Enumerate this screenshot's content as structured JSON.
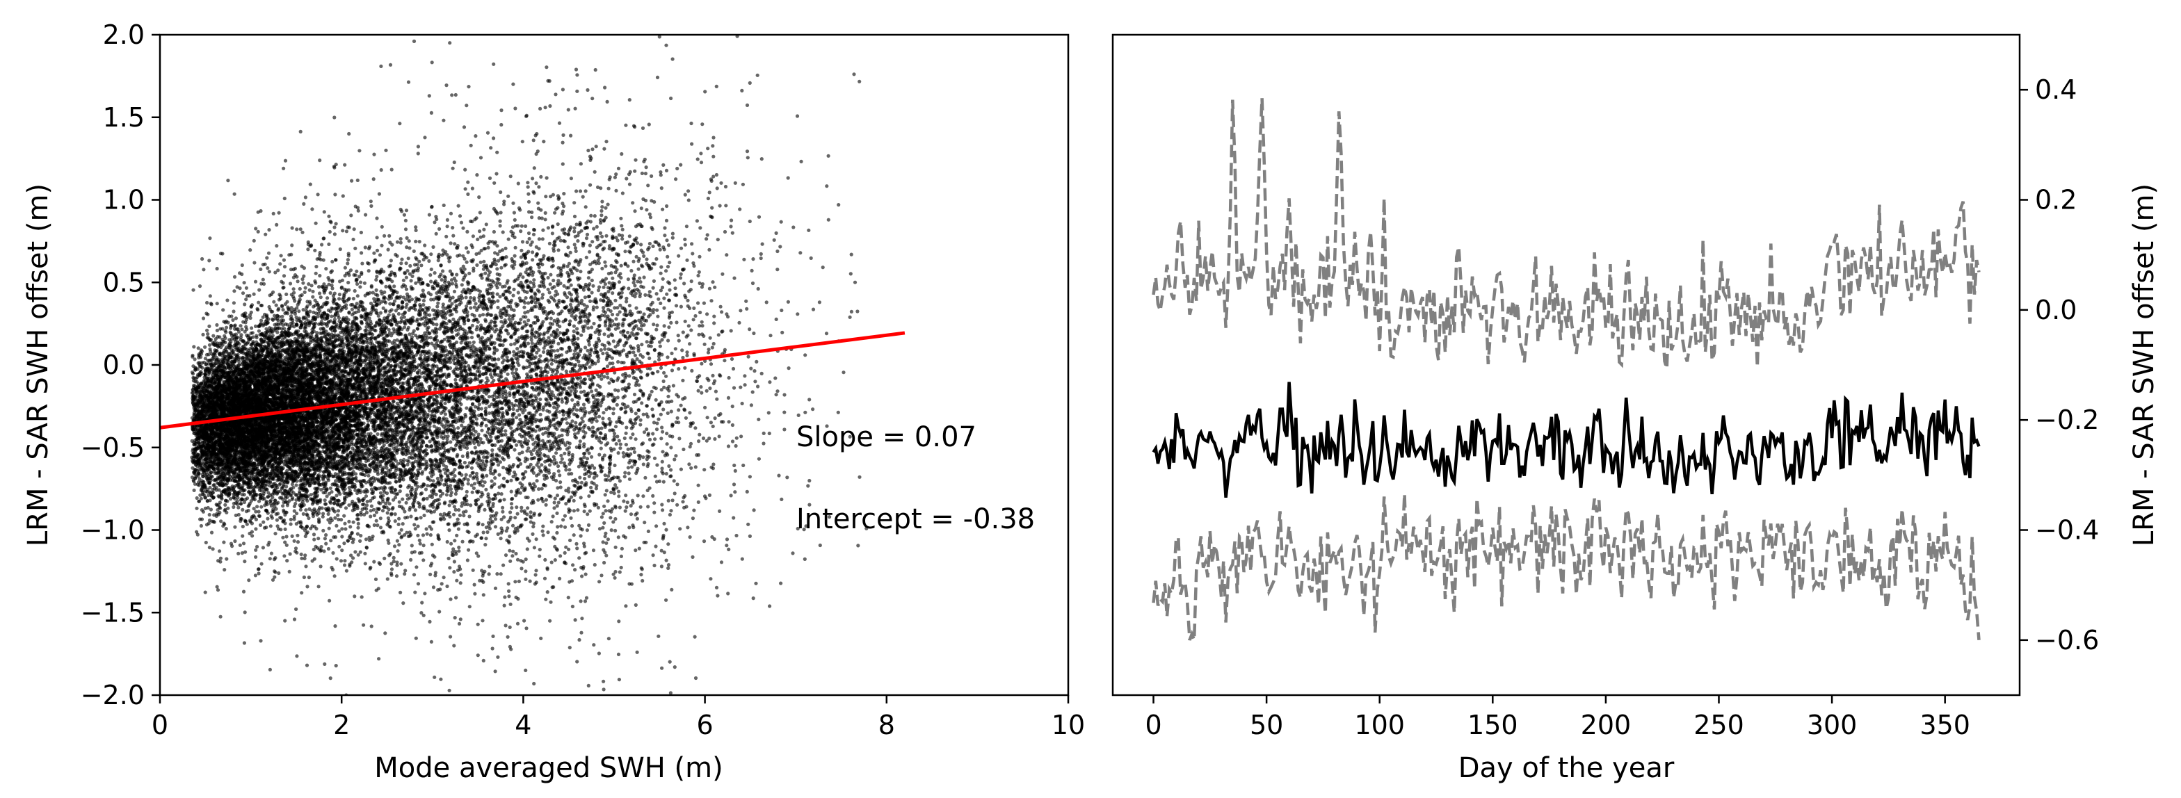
{
  "chart_data": [
    {
      "type": "scatter",
      "title": "",
      "xlabel": "Mode averaged SWH (m)",
      "ylabel": "LRM - SAR SWH offset (m)",
      "xlim": [
        0,
        10
      ],
      "ylim": [
        -2.0,
        2.0
      ],
      "xticks": [
        "0",
        "2",
        "4",
        "6",
        "8",
        "10"
      ],
      "yticks": [
        "2.0",
        "1.5",
        "1.0",
        "0.5",
        "0.0",
        "−0.5",
        "−1.0",
        "−1.5",
        "−2.0"
      ],
      "grid": false,
      "point_color": "#000000",
      "point_count_approx": 20000,
      "cloud_description": {
        "x_range": [
          0.3,
          8
        ],
        "dense_core_x": [
          0.5,
          3
        ],
        "dense_core_y": [
          -0.6,
          0.2
        ]
      },
      "fit_line": {
        "color": "#ff0000",
        "slope": 0.07,
        "intercept": -0.38,
        "x_range": [
          0,
          8.2
        ]
      },
      "annotations": [
        {
          "text": "Slope = 0.07"
        },
        {
          "text": "Intercept = -0.38"
        }
      ]
    },
    {
      "type": "line",
      "title": "",
      "xlabel": "Day of the year",
      "ylabel": "LRM - SAR SWH offset (m)",
      "xlim": [
        -18,
        383
      ],
      "ylim": [
        -0.7,
        0.5
      ],
      "xticks": [
        "0",
        "50",
        "100",
        "150",
        "200",
        "250",
        "300",
        "350"
      ],
      "yticks": [
        "0.4",
        "0.2",
        "0.0",
        "−0.2",
        "−0.4",
        "−0.6"
      ],
      "y_axis_side": "right",
      "grid": false,
      "series": [
        {
          "style": "solid",
          "color": "#000000",
          "description": "daily mean offset, about -0.3 to -0.2 m",
          "mean_level": -0.26
        },
        {
          "style": "dashed",
          "color": "#808080",
          "description": "upper envelope",
          "mean_level": -0.02
        },
        {
          "style": "dashed",
          "color": "#808080",
          "description": "lower envelope",
          "mean_level": -0.42
        }
      ],
      "notable_peaks_upper": [
        {
          "x": 35,
          "y": 0.37
        },
        {
          "x": 48,
          "y": 0.42
        },
        {
          "x": 82,
          "y": 0.4
        },
        {
          "x": 135,
          "y": 0.09
        },
        {
          "x": 152,
          "y": 0.05
        },
        {
          "x": 358,
          "y": 0.18
        }
      ]
    }
  ]
}
